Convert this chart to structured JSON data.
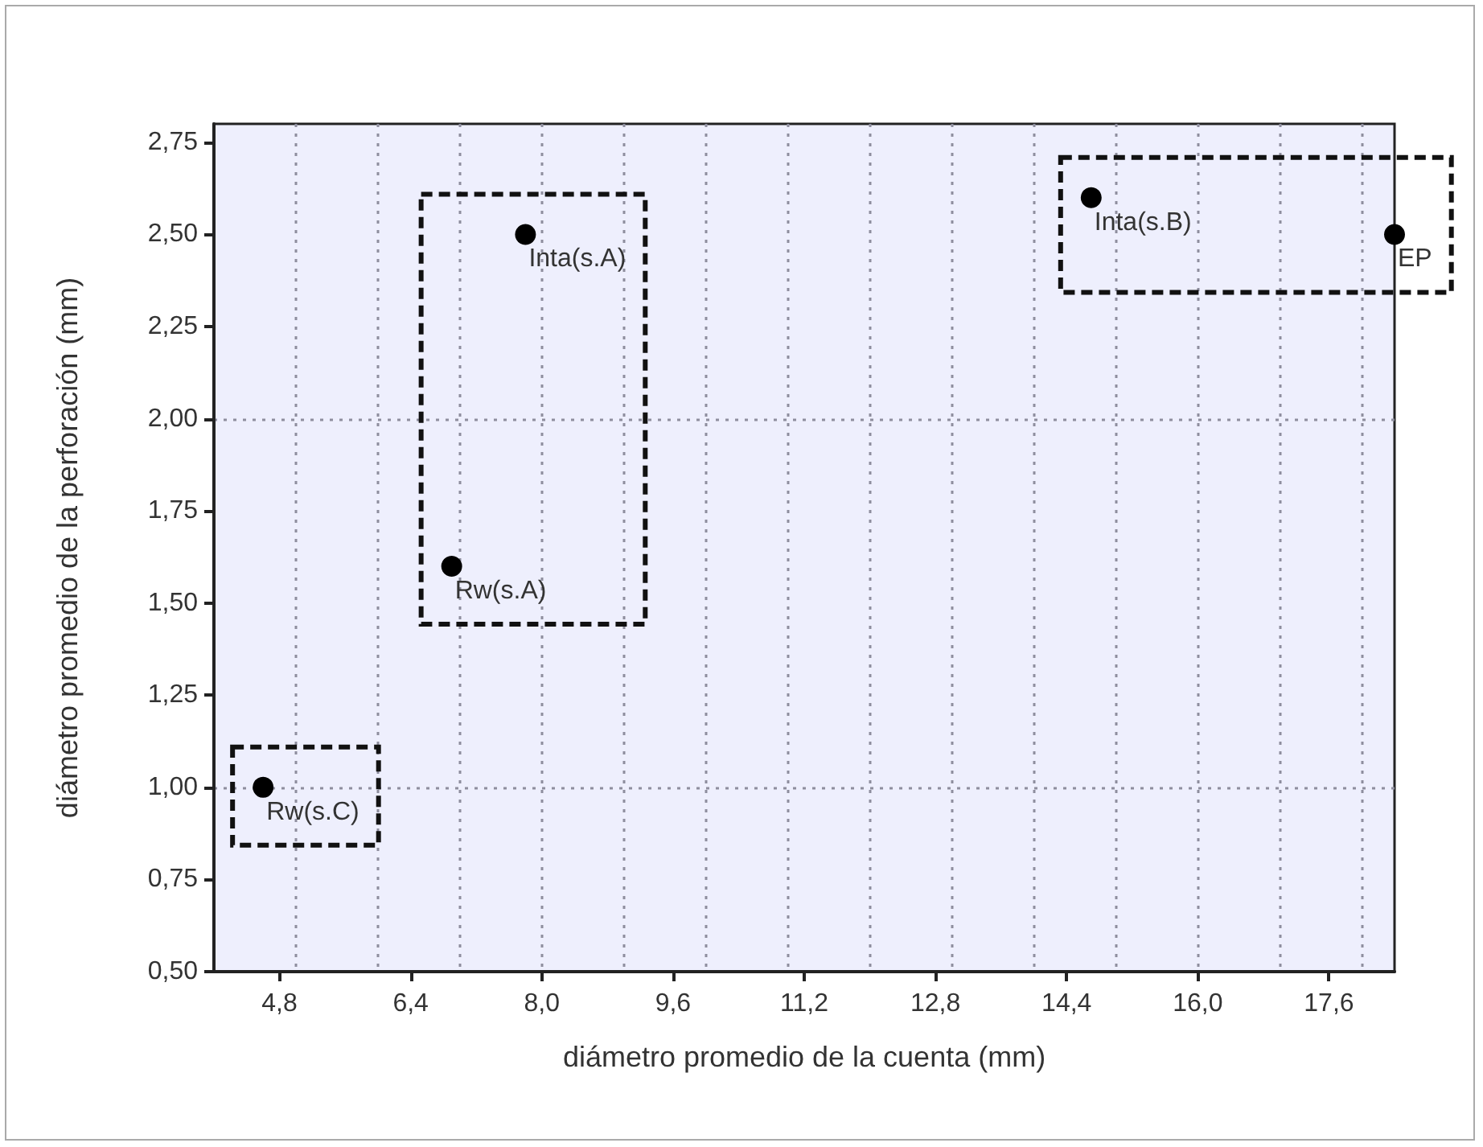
{
  "chart_data": {
    "type": "scatter",
    "xlabel": "diámetro promedio de la cuenta (mm)",
    "ylabel": "diámetro promedio de la perforación (mm)",
    "series": [
      {
        "color": "#000000",
        "x": [
          4.6
        ],
        "values": [
          1.0
        ]
      },
      {
        "color": "#000000",
        "x": [
          6.9,
          7.8
        ],
        "values": [
          1.6,
          2.5
        ]
      },
      {
        "color": "#000000",
        "x": [
          14.7,
          18.4
        ],
        "values": [
          2.6,
          2.5
        ]
      }
    ],
    "xlim": [
      4.0,
      18.4
    ],
    "xticks": [
      {
        "value": 4.8,
        "label": "4,8"
      },
      {
        "value": 6.4,
        "label": "6,4"
      },
      {
        "value": 8.0,
        "label": "8,0"
      },
      {
        "value": 9.6,
        "label": "9,6"
      },
      {
        "value": 11.2,
        "label": "11,2"
      },
      {
        "value": 12.8,
        "label": "12,8"
      },
      {
        "value": 14.4,
        "label": "14,4"
      },
      {
        "value": 16.0,
        "label": "16,0"
      },
      {
        "value": 17.6,
        "label": "17,6"
      }
    ],
    "ylim": [
      0.5,
      2.8
    ],
    "yticks": [
      {
        "value": 0.5,
        "label": "0,50"
      },
      {
        "value": 0.75,
        "label": "0,75"
      },
      {
        "value": 1.0,
        "label": "1,00"
      },
      {
        "value": 1.25,
        "label": "1,25"
      },
      {
        "value": 1.5,
        "label": "1,50"
      },
      {
        "value": 1.75,
        "label": "1,75"
      },
      {
        "value": 2.0,
        "label": "2,00"
      },
      {
        "value": 2.25,
        "label": "2,25"
      },
      {
        "value": 2.5,
        "label": "2,50"
      },
      {
        "value": 2.75,
        "label": "2,75"
      }
    ],
    "grid": true,
    "marker": "circle",
    "annotations": [
      {
        "text": "Rw(s.C)",
        "x": 4.6,
        "y": 1.0
      },
      {
        "text": "Rw(s.A)",
        "x": 6.9,
        "y": 1.6
      },
      {
        "text": "Inta(s.A)",
        "x": 7.8,
        "y": 2.5
      },
      {
        "text": "Inta(s.B)",
        "x": 14.7,
        "y": 2.6
      },
      {
        "text": "EP",
        "x": 18.4,
        "y": 2.5
      }
    ]
  }
}
